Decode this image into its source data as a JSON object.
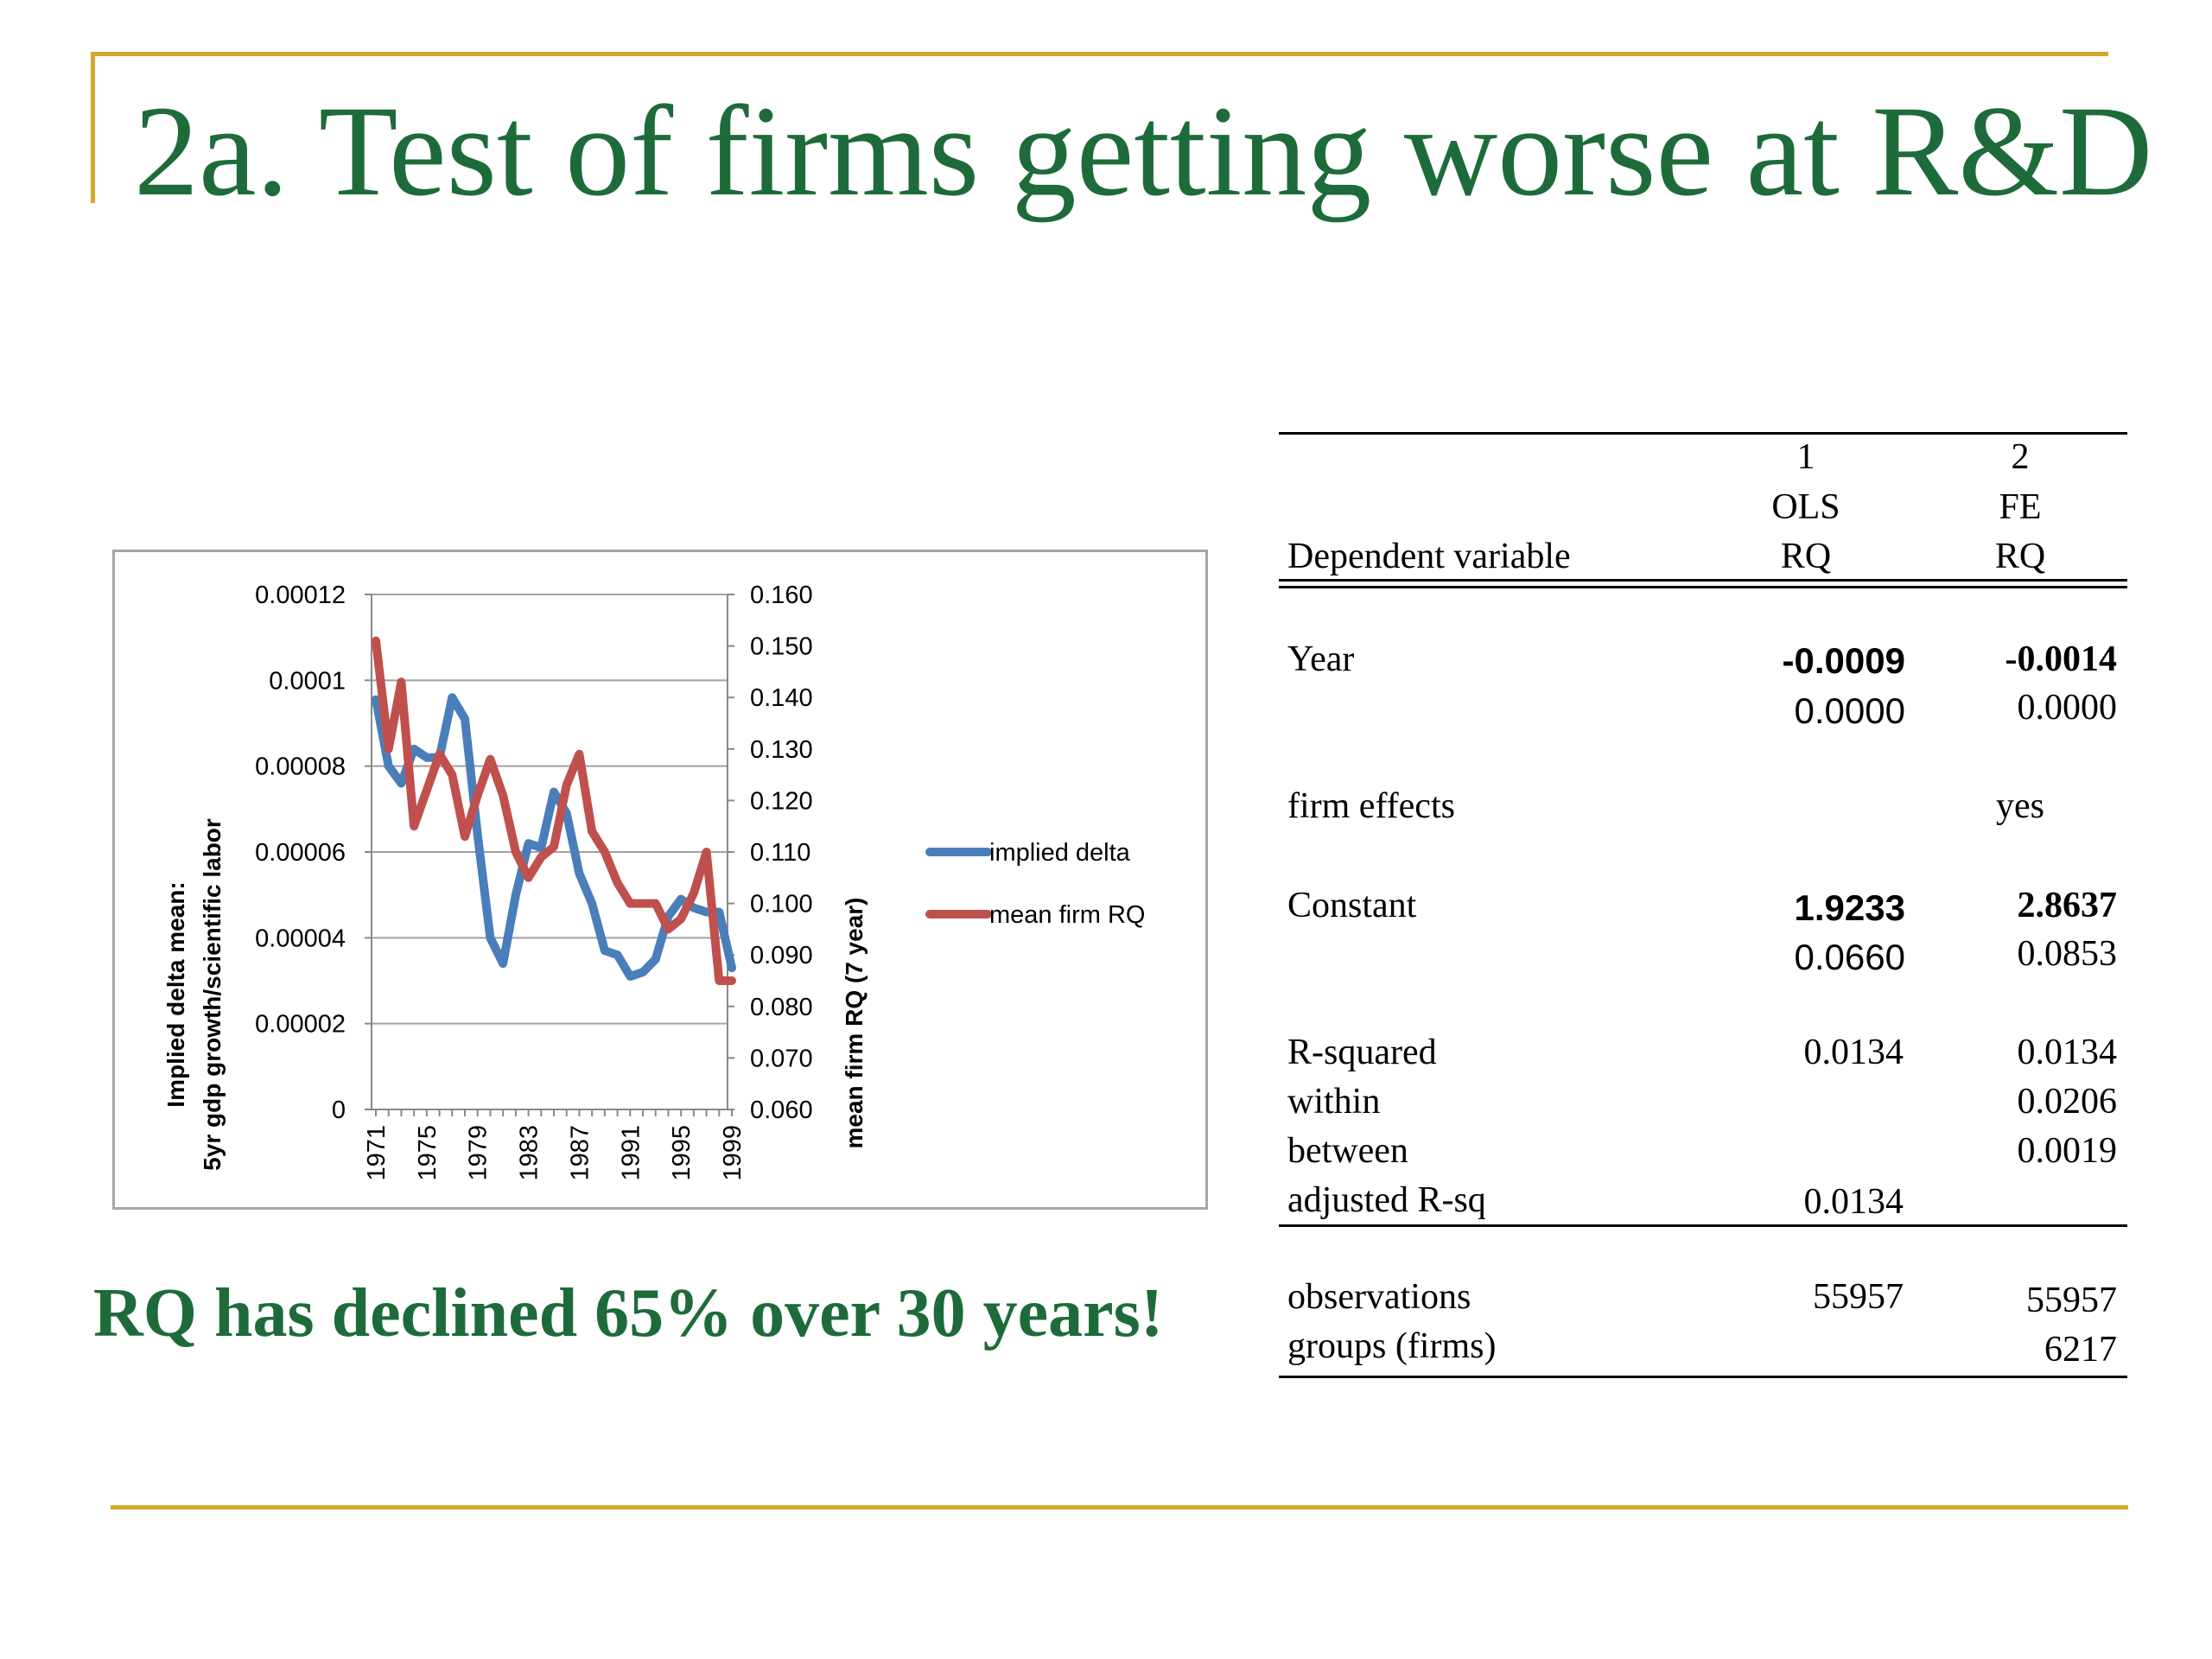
{
  "slide": {
    "title": "2a. Test of firms getting worse at R&D",
    "conclusion": "RQ has declined 65% over 30 years!",
    "colors": {
      "title": "#1e6b3a",
      "accent": "#d6a72b"
    }
  },
  "chart_data": {
    "type": "line",
    "x_ticks": [
      "1971",
      "1975",
      "1979",
      "1983",
      "1987",
      "1991",
      "1995",
      "1999"
    ],
    "y_left": {
      "label_line1": "Implied delta mean:",
      "label_line2": "5yr gdp growth/scientific labor",
      "ticks": [
        "0.00012",
        "0.0001",
        "0.00008",
        "0.00006",
        "0.00004",
        "0.00002",
        "0"
      ],
      "range": [
        0,
        0.00012
      ]
    },
    "y_right": {
      "label": "mean firm RQ (7 year)",
      "ticks": [
        "0.160",
        "0.150",
        "0.140",
        "0.130",
        "0.120",
        "0.110",
        "0.100",
        "0.090",
        "0.080",
        "0.070",
        "0.060"
      ],
      "range": [
        0.06,
        0.16
      ]
    },
    "grid": true,
    "legend_position": "right",
    "series": [
      {
        "name": "implied delta",
        "axis": "left",
        "color": "#4a7ebb",
        "x": [
          1971,
          1972,
          1973,
          1974,
          1975,
          1976,
          1977,
          1978,
          1979,
          1980,
          1981,
          1982,
          1983,
          1984,
          1985,
          1986,
          1987,
          1988,
          1989,
          1990,
          1991,
          1992,
          1993,
          1994,
          1995,
          1996,
          1997,
          1998,
          1999
        ],
        "values": [
          9.55e-05,
          8e-05,
          7.6e-05,
          8.4e-05,
          8.2e-05,
          8.2e-05,
          9.6e-05,
          9.1e-05,
          6.4e-05,
          4e-05,
          3.4e-05,
          5e-05,
          6.2e-05,
          6.1e-05,
          7.4e-05,
          6.9e-05,
          5.5e-05,
          4.8e-05,
          3.7e-05,
          3.6e-05,
          3.1e-05,
          3.2e-05,
          3.5e-05,
          4.5e-05,
          4.9e-05,
          4.7e-05,
          4.6e-05,
          4.6e-05,
          3.3e-05
        ]
      },
      {
        "name": "mean firm RQ",
        "axis": "right",
        "color": "#c0504d",
        "x": [
          1971,
          1972,
          1973,
          1974,
          1975,
          1976,
          1977,
          1978,
          1979,
          1980,
          1981,
          1982,
          1983,
          1984,
          1985,
          1986,
          1987,
          1988,
          1989,
          1990,
          1991,
          1992,
          1993,
          1994,
          1995,
          1996,
          1997,
          1998,
          1999
        ],
        "values": [
          0.151,
          0.13,
          0.143,
          0.115,
          0.122,
          0.129,
          0.125,
          0.113,
          0.121,
          0.128,
          0.121,
          0.11,
          0.105,
          0.109,
          0.111,
          0.123,
          0.129,
          0.114,
          0.11,
          0.104,
          0.1,
          0.1,
          0.1,
          0.095,
          0.097,
          0.102,
          0.11,
          0.085,
          0.085
        ]
      }
    ]
  },
  "table": {
    "header_col1": "1",
    "header_col2": "2",
    "header_col1_method": "OLS",
    "header_col2_method": "FE",
    "dep_var_label": "Dependent variable",
    "dep_var_col1": "RQ",
    "dep_var_col2": "RQ",
    "rows": {
      "year": {
        "label": "Year",
        "col1": "-0.0009",
        "col2": "-0.0014",
        "col1_se": "0.0000",
        "col2_se": "0.0000"
      },
      "firm_effects": {
        "label": "firm effects",
        "col2": "yes"
      },
      "constant": {
        "label": "Constant",
        "col1": "1.9233",
        "col2": "2.8637",
        "col1_se": "0.0660",
        "col2_se": "0.0853"
      },
      "r_squared": {
        "label": "R-squared",
        "col1": "0.0134",
        "col2": "0.0134"
      },
      "within": {
        "label": "within",
        "col2": "0.0206"
      },
      "between": {
        "label": "between",
        "col2": "0.0019"
      },
      "adj_r_sq": {
        "label": "adjusted R-sq",
        "col1": "0.0134"
      },
      "observations": {
        "label": "observations",
        "col1": "55957",
        "col2": "55957"
      },
      "groups": {
        "label": "groups (firms)",
        "col2": "6217"
      }
    }
  }
}
